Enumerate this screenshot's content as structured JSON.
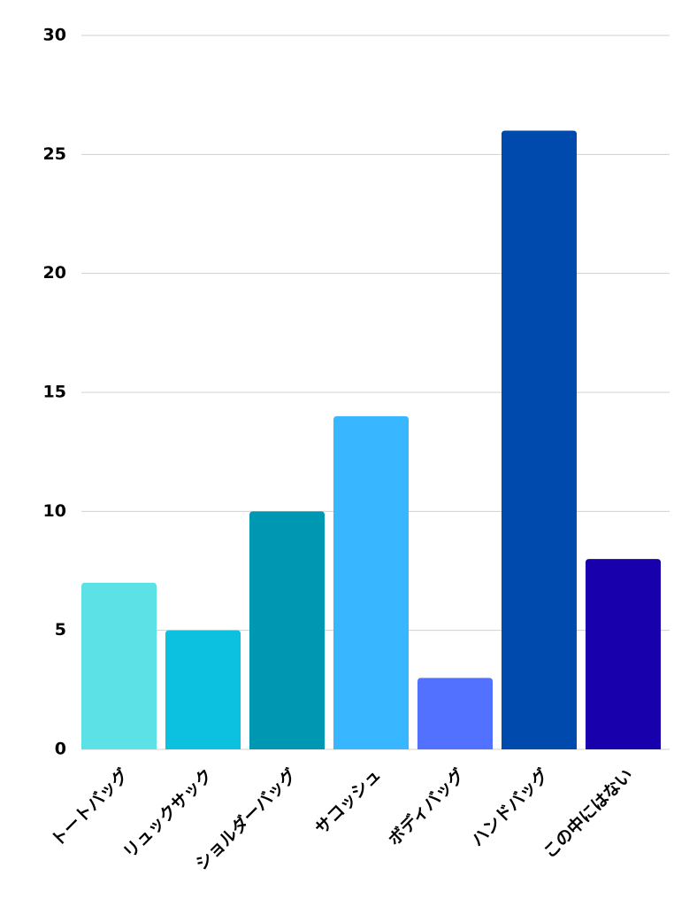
{
  "chart_data": {
    "type": "bar",
    "categories": [
      "トートバッグ",
      "リュックサック",
      "ショルダーバッグ",
      "サコッシュ",
      "ボディバッグ",
      "ハンドバッグ",
      "この中にはない"
    ],
    "values": [
      7,
      5,
      10,
      14,
      3,
      26,
      8
    ],
    "colors": [
      "#5ce1e6",
      "#0cc0df",
      "#0097b2",
      "#38b6ff",
      "#5271ff",
      "#004aad",
      "#1800ad"
    ],
    "ylim": [
      0,
      30
    ],
    "yticks": [
      0,
      5,
      10,
      15,
      20,
      25,
      30
    ],
    "grid": true
  }
}
